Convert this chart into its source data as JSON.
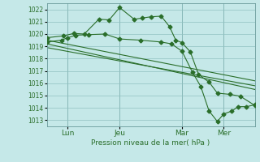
{
  "background_color": "#c5e8e8",
  "grid_color": "#90c0c0",
  "line_color": "#2a6e2a",
  "text_color": "#2a6e2a",
  "xlabel_text": "Pression niveau de la mer( hPa )",
  "ylim": [
    1012.5,
    1022.5
  ],
  "yticks": [
    1013,
    1014,
    1015,
    1016,
    1017,
    1018,
    1019,
    1020,
    1021,
    1022
  ],
  "xlim": [
    0,
    10
  ],
  "xtick_labels": [
    "Lun",
    "Jeu",
    "Mar",
    "Mer"
  ],
  "xtick_positions": [
    1.0,
    3.5,
    6.5,
    8.5
  ],
  "vline_positions": [
    1.0,
    3.5,
    6.5,
    8.5
  ],
  "series1_x": [
    0,
    0.8,
    1.3,
    1.8,
    2.5,
    3.0,
    3.5,
    4.2,
    4.6,
    5.0,
    5.5,
    5.9,
    6.2,
    6.5,
    6.9,
    7.3,
    7.8,
    8.2,
    8.8,
    9.3,
    10.0
  ],
  "series1_y": [
    1019.7,
    1019.85,
    1020.05,
    1020.0,
    1021.2,
    1021.15,
    1022.15,
    1021.2,
    1021.3,
    1021.4,
    1021.45,
    1020.6,
    1019.5,
    1019.3,
    1018.55,
    1016.7,
    1016.1,
    1015.2,
    1015.1,
    1014.95,
    1014.2
  ],
  "series2_x": [
    0,
    0.7,
    1.0,
    1.4,
    2.0,
    2.8,
    3.5,
    4.5,
    5.5,
    6.0,
    6.5,
    7.0,
    7.4,
    7.8,
    8.2,
    8.5,
    8.9,
    9.2,
    9.6,
    10.0
  ],
  "series2_y": [
    1019.35,
    1019.5,
    1019.7,
    1019.9,
    1019.95,
    1020.0,
    1019.6,
    1019.5,
    1019.35,
    1019.2,
    1018.6,
    1016.9,
    1015.75,
    1013.75,
    1012.9,
    1013.5,
    1013.75,
    1014.1,
    1014.1,
    1014.25
  ],
  "series3_x": [
    0,
    10
  ],
  "series3_y": [
    1019.5,
    1016.2
  ],
  "series4_x": [
    0,
    10
  ],
  "series4_y": [
    1019.2,
    1015.5
  ],
  "series5_x": [
    0,
    10
  ],
  "series5_y": [
    1018.9,
    1015.8
  ]
}
